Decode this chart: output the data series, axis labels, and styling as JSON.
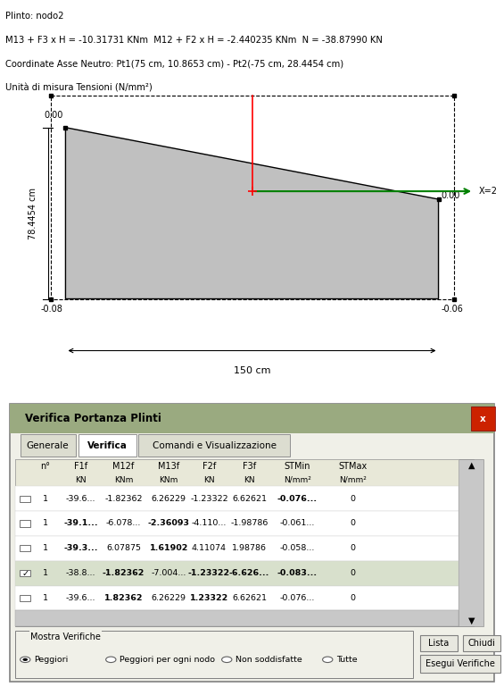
{
  "title_lines": [
    "Plinto: nodo2",
    "M13 + F3 x H = -10.31731 KNm  M12 + F2 x H = -2.440235 KNm  N = -38.87990 KN",
    "Coordinate Asse Neutro: Pt1(75 cm, 10.8653 cm) - Pt2(-75 cm, 28.4454 cm)",
    "Unità di misura Tensioni (N/mm²)"
  ],
  "section_label_left": "78.4454 cm",
  "bottom_left_val": "-0.08",
  "bottom_right_val": "-0.06",
  "top_left_val": "0.00",
  "top_right_val": "0.00",
  "width_label": "150 cm",
  "x_arrow_label": "X=2",
  "dialog_title": "Verifica Portanza Plinti",
  "tabs": [
    "Generale",
    "Verifica",
    "Comandi e Visualizzazione"
  ],
  "active_tab": 1,
  "col_headers_row1": [
    "n°",
    "F1f",
    "M12f",
    "M13f",
    "F2f",
    "F3f",
    "STMin",
    "STMax"
  ],
  "col_headers_row2": [
    "",
    "KN",
    "KNm",
    "KNm",
    "KN",
    "KN",
    "N/mm²",
    "N/mm²"
  ],
  "rows": [
    {
      "check": false,
      "n": "1",
      "F1f": "-39.6...",
      "M12f": "-1.82362",
      "M13f": "6.26229",
      "F2f": "-1.23322",
      "F3f": "6.62621",
      "STMin": "-0.076...",
      "STMax": "0",
      "bold_cols": [
        7
      ]
    },
    {
      "check": false,
      "n": "1",
      "F1f": "-39.1...",
      "M12f": "-6.078...",
      "M13f": "-2.36093",
      "F2f": "-4.110...",
      "F3f": "-1.98786",
      "STMin": "-0.061...",
      "STMax": "0",
      "bold_cols": [
        2,
        4
      ]
    },
    {
      "check": false,
      "n": "1",
      "F1f": "-39.3...",
      "M12f": "6.07875",
      "M13f": "1.61902",
      "F2f": "4.11074",
      "F3f": "1.98786",
      "STMin": "-0.058...",
      "STMax": "0",
      "bold_cols": [
        2,
        4
      ]
    },
    {
      "check": true,
      "n": "1",
      "F1f": "-38.8...",
      "M12f": "-1.82362",
      "M13f": "-7.004...",
      "F2f": "-1.23322",
      "F3f": "-6.626...",
      "STMin": "-0.083...",
      "STMax": "0",
      "bold_cols": [
        3,
        5,
        6,
        7
      ]
    },
    {
      "check": false,
      "n": "1",
      "F1f": "-39.6...",
      "M12f": "1.82362",
      "M13f": "6.26229",
      "F2f": "1.23322",
      "F3f": "6.62621",
      "STMin": "-0.076...",
      "STMax": "0",
      "bold_cols": [
        3,
        5
      ]
    }
  ],
  "radio_options": [
    "Peggiori",
    "Peggiori per ogni nodo",
    "Non soddisfatte",
    "Tutte"
  ],
  "active_radio": 0,
  "btn_lista": "Lista",
  "btn_chiudi": "Chiudi",
  "btn_esegui": "Esegui Verifiche",
  "mostra_label": "Mostra Verifiche",
  "bg_color": "#f0f0e8",
  "dialog_header_color": "#9aaa80",
  "tab_bg": "#dcddd0",
  "grid_bg": "#ffffff",
  "section_fill_color": "#c0c0c0",
  "section_line_color": "#000000",
  "scrollbar_color": "#c8c8c8"
}
